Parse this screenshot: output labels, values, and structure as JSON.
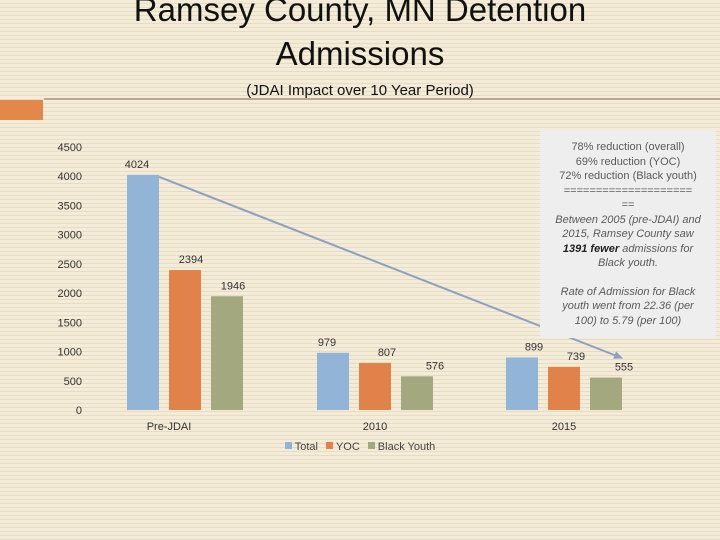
{
  "slide": {
    "title_line1": "Ramsey County, MN Detention",
    "title_line2": "Admissions",
    "subtitle": "(JDAI Impact over 10 Year Period)"
  },
  "note": {
    "lines": [
      "78% reduction (overall)",
      "69% reduction (YOC)",
      "72% reduction (Black youth)",
      "====================",
      "==",
      "Between 2005 (pre-JDAI) and",
      "2015, Ramsey County saw"
    ],
    "emph_strong": "1391 fewer",
    "emph_rest": " admissions for",
    "after_lines": [
      "Black youth."
    ],
    "rate_lines": [
      "Rate of Admission for Black",
      "youth went from 22.36 (per",
      "100) to 5.79 (per 100)"
    ]
  },
  "chart_data": {
    "type": "bar",
    "categories": [
      "Pre-JDAI",
      "2010",
      "2015"
    ],
    "series": [
      {
        "name": "Total",
        "values": [
          4024,
          979,
          899
        ],
        "color": "#92b4d6"
      },
      {
        "name": "YOC",
        "values": [
          2394,
          807,
          739
        ],
        "color": "#e0824a"
      },
      {
        "name": "Black Youth",
        "values": [
          1946,
          576,
          555
        ],
        "color": "#a3a87e"
      }
    ],
    "y_ticks": [
      "0",
      "500",
      "1000",
      "1500",
      "2000",
      "2500",
      "3000",
      "3500",
      "4000",
      "4500"
    ],
    "ylim": [
      0,
      4500
    ],
    "data_labels": true,
    "legend_position": "bottom",
    "trend_arrow": {
      "from": "Total Pre-JDAI",
      "to": "Total 2015",
      "color": "#8aa1c4"
    },
    "grid": false
  }
}
